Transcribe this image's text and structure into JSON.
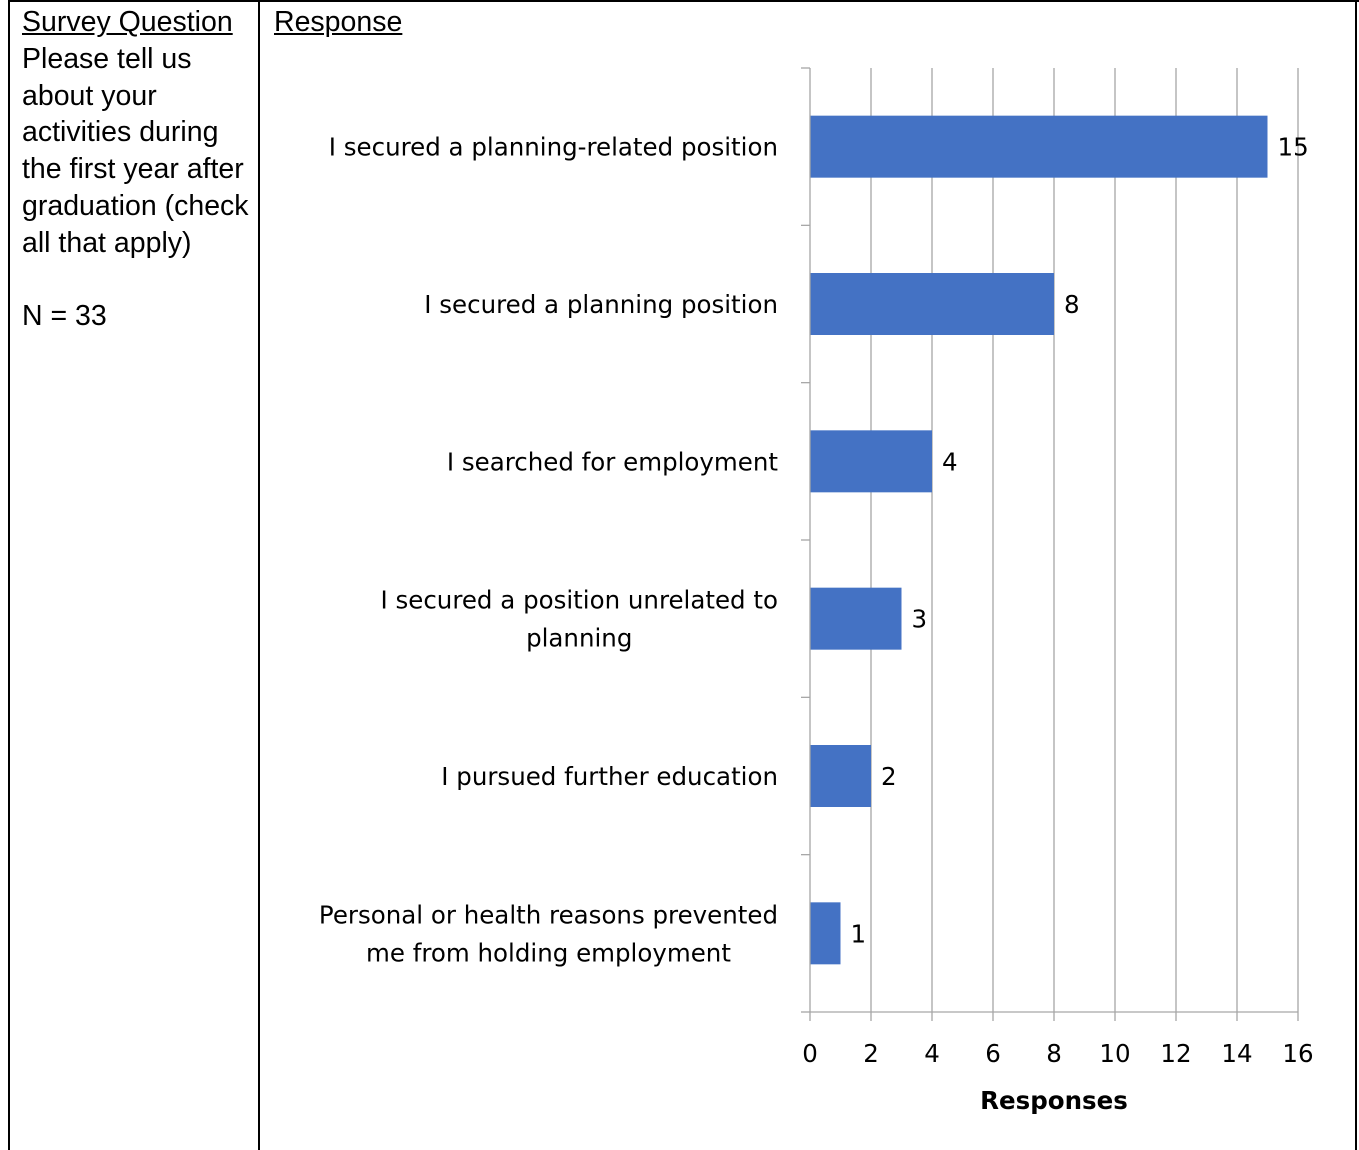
{
  "table": {
    "question_header": "Survey Question",
    "question_text": "Please tell us about your activities during the first year after graduation (check all that apply)",
    "n_label": "N = 33",
    "response_header": "Response"
  },
  "chart_data": {
    "type": "bar",
    "orientation": "horizontal",
    "categories": [
      "I secured a planning-related position",
      "I secured a planning position",
      "I searched for employment",
      "I secured a position unrelated to planning",
      "I pursued further education",
      "Personal or health reasons prevented me from holding employment"
    ],
    "category_lines": [
      [
        "I secured a planning-related position"
      ],
      [
        "I secured a planning position"
      ],
      [
        "I searched for employment"
      ],
      [
        "I secured a position unrelated to",
        "planning"
      ],
      [
        "I pursued further education"
      ],
      [
        "Personal or health reasons prevented",
        "me from holding employment"
      ]
    ],
    "values": [
      15,
      8,
      4,
      3,
      2,
      1
    ],
    "data_labels": [
      "15",
      "8",
      "4",
      "3",
      "2",
      "1"
    ],
    "title": "",
    "xlabel": "Responses",
    "ylabel": "",
    "xlim": [
      0,
      16
    ],
    "xticks": [
      0,
      2,
      4,
      6,
      8,
      10,
      12,
      14,
      16
    ],
    "xtick_labels": [
      "0",
      "2",
      "4",
      "6",
      "8",
      "10",
      "12",
      "14",
      "16"
    ],
    "grid": "vertical",
    "legend": "none",
    "bar_color": "#4472C4",
    "grid_color": "#A6A6A6"
  }
}
